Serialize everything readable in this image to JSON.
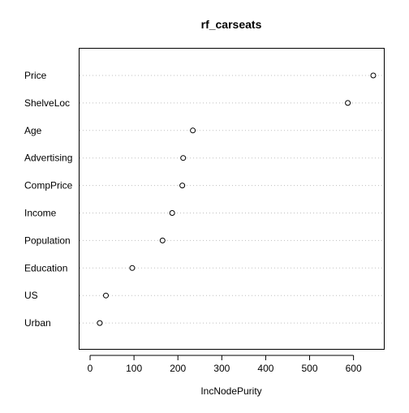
{
  "chart_data": {
    "type": "scatter",
    "title": "rf_carseats",
    "xlabel": "IncNodePurity",
    "ylabel": "",
    "xlim": [
      -25,
      670
    ],
    "x_ticks": [
      0,
      100,
      200,
      300,
      400,
      500,
      600
    ],
    "grid": false,
    "legend": "none",
    "categories": [
      "Price",
      "ShelveLoc",
      "Age",
      "Advertising",
      "CompPrice",
      "Income",
      "Population",
      "Education",
      "US",
      "Urban"
    ],
    "values": [
      645,
      587,
      234,
      212,
      210,
      187,
      165,
      96,
      36,
      22
    ]
  }
}
